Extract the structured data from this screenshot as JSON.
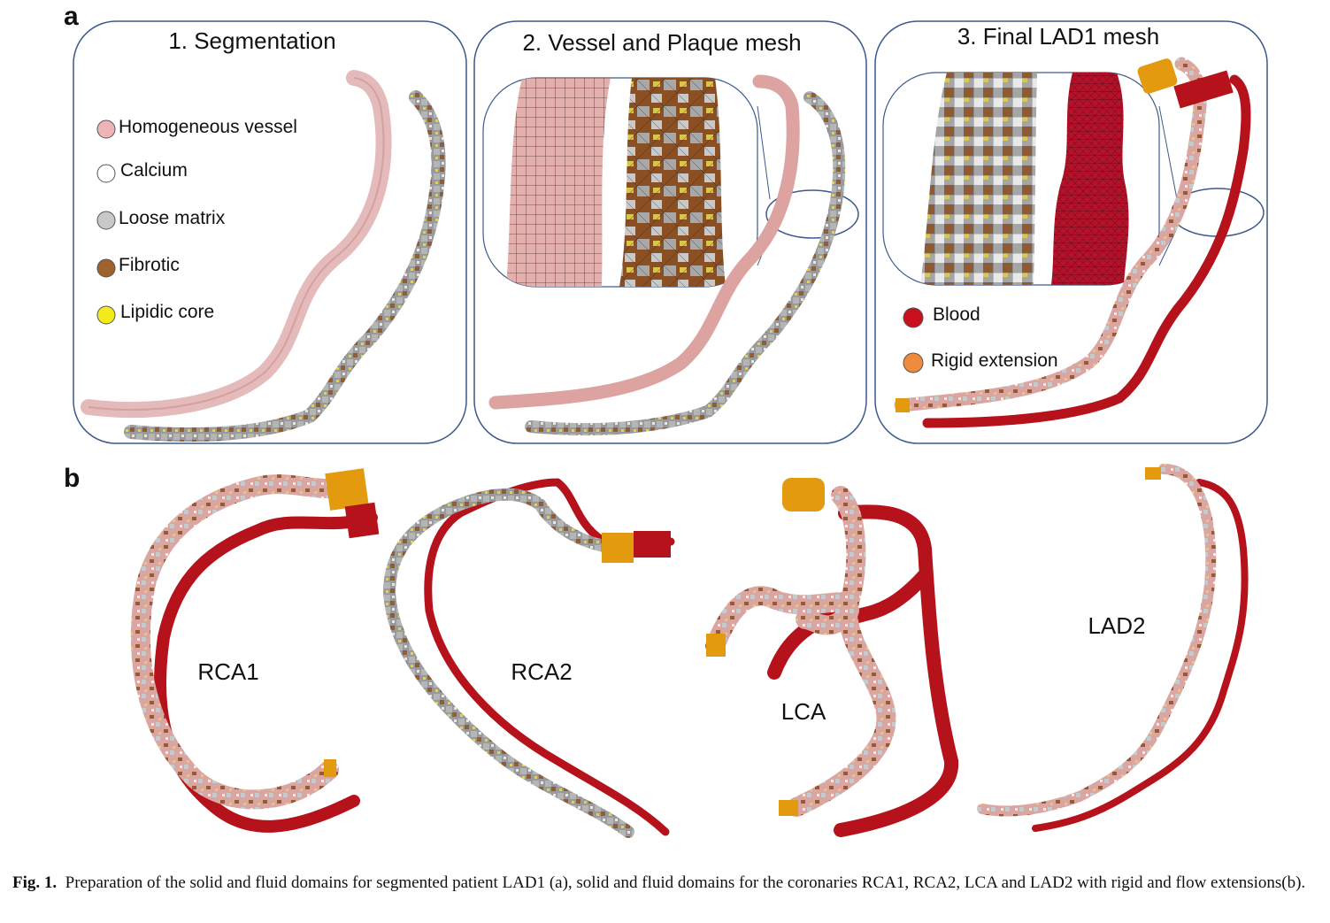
{
  "panel_a": {
    "letter": "a",
    "sub1": {
      "title": "1. Segmentation",
      "legend": [
        {
          "label": "Homogeneous vessel",
          "color": "#f0b3b8",
          "icon": "pink-circle-icon"
        },
        {
          "label": "Calcium",
          "color": "#ffffff",
          "icon": "white-circle-icon"
        },
        {
          "label": "Loose matrix",
          "color": "#c8c8c8",
          "icon": "gray-circle-icon"
        },
        {
          "label": "Fibrotic",
          "color": "#a0622d",
          "icon": "brown-circle-icon"
        },
        {
          "label": "Lipidic core",
          "color": "#f2ea1a",
          "icon": "yellow-circle-icon"
        }
      ]
    },
    "sub2": {
      "title": "2. Vessel and Plaque mesh"
    },
    "sub3": {
      "title": "3. Final LAD1 mesh",
      "legend": [
        {
          "label": "Blood",
          "color": "#c8101e",
          "icon": "red-circle-icon"
        },
        {
          "label": "Rigid extension",
          "color": "#f08a3c",
          "icon": "orange-circle-icon"
        }
      ]
    }
  },
  "panel_b": {
    "letter": "b",
    "labels": [
      "RCA1",
      "RCA2",
      "LCA",
      "LAD2"
    ]
  },
  "colors": {
    "vessel_pink": "#d9a3a0",
    "plaque_gray": "#9c9c9c",
    "blood_red": "#b5121b",
    "rigid_orange": "#e39a0e",
    "fibrotic_brown": "#9a5a2a",
    "lipid_yellow": "#e3d34a",
    "frame_blue": "#3c5a8c"
  },
  "caption": {
    "label": "Fig. 1.",
    "text": "Preparation of the solid and fluid domains for segmented patient LAD1 (a), solid and fluid domains for the coronaries RCA1, RCA2, LCA and LAD2 with rigid and flow extensions(b)."
  }
}
